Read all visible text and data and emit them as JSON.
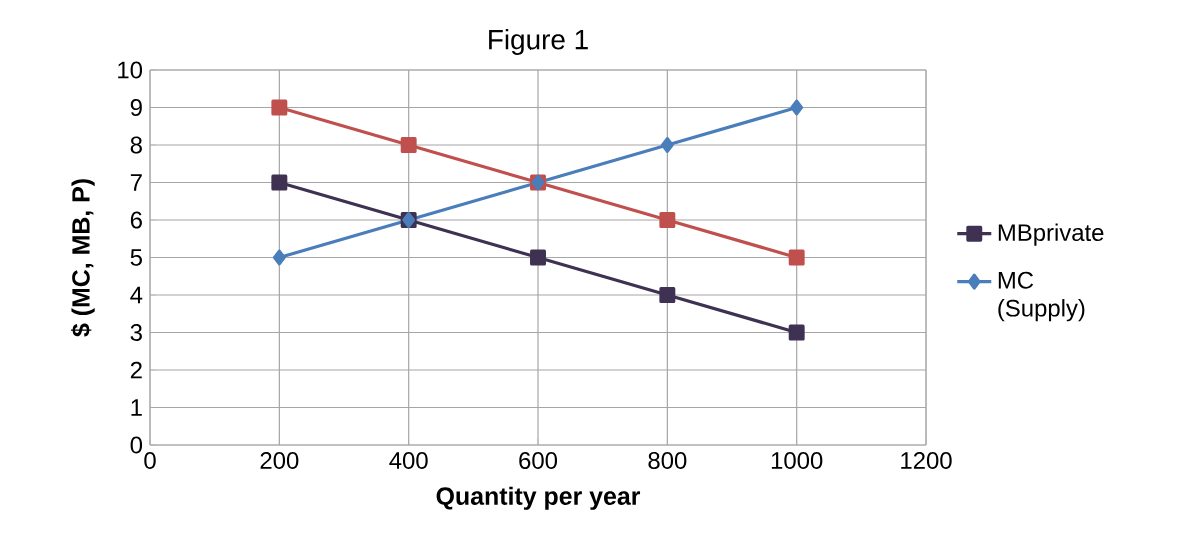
{
  "chart_data": {
    "type": "line",
    "title": "Figure 1",
    "xlabel": "Quantity per year",
    "ylabel": "$ (MC, MB, P)",
    "x": [
      200,
      400,
      600,
      800,
      1000
    ],
    "series": [
      {
        "color": "#c0504d",
        "marker": "square",
        "values": [
          9,
          8,
          7,
          6,
          5
        ]
      },
      {
        "name": "MBprivate",
        "color": "#3f3151",
        "marker": "square",
        "values": [
          7,
          6,
          5,
          4,
          3
        ]
      },
      {
        "name": "MC (Supply)",
        "color": "#4a7ebb",
        "marker": "diamond",
        "values": [
          5,
          6,
          7,
          8,
          9
        ]
      }
    ],
    "xlim": [
      0,
      1200
    ],
    "xticks": [
      0,
      200,
      400,
      600,
      800,
      1000,
      1200
    ],
    "ylim": [
      0,
      10
    ],
    "yticks": [
      0,
      1,
      2,
      3,
      4,
      5,
      6,
      7,
      8,
      9,
      10
    ],
    "grid": true,
    "legend": "right",
    "line_style": "solid"
  }
}
